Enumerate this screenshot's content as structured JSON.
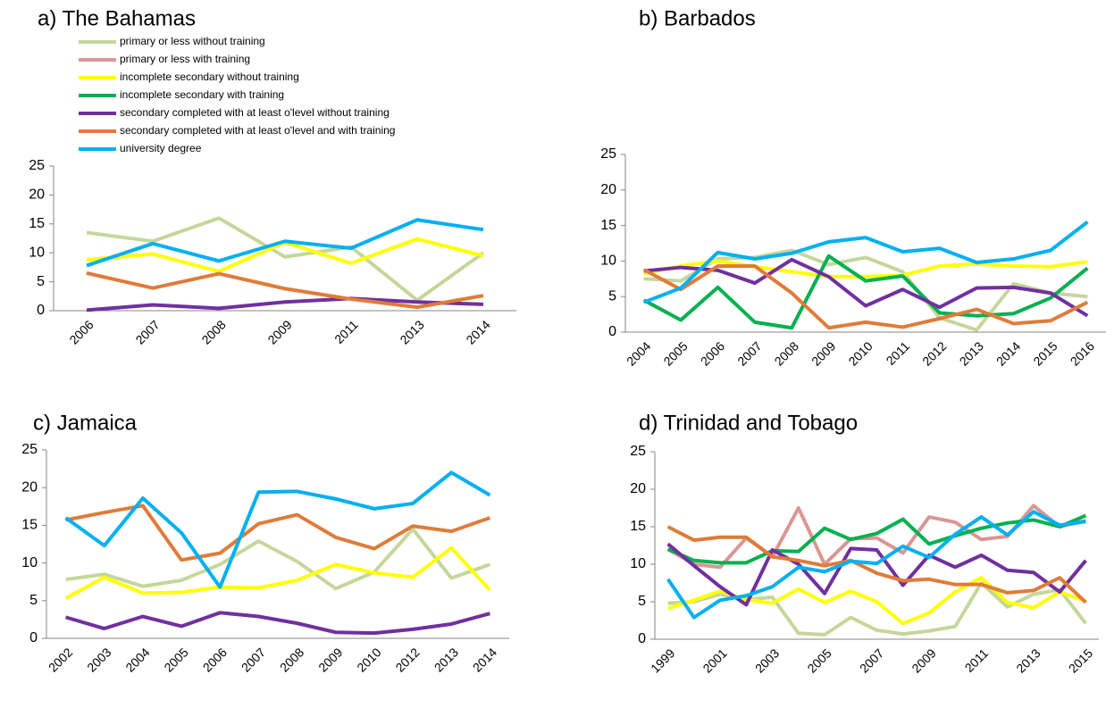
{
  "chart_data": [
    {
      "type": "line",
      "title": "a)  The Bahamas",
      "legend": true,
      "categories": [
        "2006",
        "2007",
        "2008",
        "2009",
        "2011",
        "2013",
        "2014"
      ],
      "ylim": [
        0,
        25
      ],
      "yticks": [
        0,
        5,
        10,
        15,
        20,
        25
      ],
      "series": [
        {
          "name": "primary or less without training",
          "color": "#c4d79b",
          "values": [
            13.5,
            12,
            16,
            9.3,
            11,
            1.8,
            10
          ]
        },
        {
          "name": "primary or less with training",
          "color": "#da9694",
          "values": [
            null,
            null,
            null,
            null,
            null,
            null,
            null
          ]
        },
        {
          "name": "incomplete secondary without training",
          "color": "#ffff00",
          "values": [
            8.8,
            9.8,
            6.8,
            11.8,
            8.2,
            12.4,
            9.5
          ]
        },
        {
          "name": "incomplete secondary with training",
          "color": "#00b050",
          "values": [
            null,
            null,
            null,
            null,
            null,
            null,
            null
          ]
        },
        {
          "name": "secondary completed with at least o'level without training",
          "color": "#7030a0",
          "values": [
            0.1,
            1,
            0.4,
            1.5,
            2.1,
            1.5,
            1.1
          ]
        },
        {
          "name": "secondary completed with at least o'level and with training",
          "color": "#e07b39",
          "values": [
            6.5,
            3.9,
            6.4,
            3.8,
            2,
            0.6,
            2.6
          ]
        },
        {
          "name": "university degree",
          "color": "#00b0f0",
          "values": [
            7.8,
            11.6,
            8.6,
            12,
            10.8,
            15.7,
            14
          ]
        }
      ]
    },
    {
      "type": "line",
      "title": "b)  Barbados",
      "legend": false,
      "categories": [
        "2004",
        "2005",
        "2006",
        "2007",
        "2008",
        "2009",
        "2010",
        "2011",
        "2012",
        "2013",
        "2014",
        "2015",
        "2016"
      ],
      "ylim": [
        0,
        25
      ],
      "yticks": [
        0,
        5,
        10,
        15,
        20,
        25
      ],
      "series": [
        {
          "color": "#c4d79b",
          "values": [
            7.5,
            7.2,
            10.3,
            10.5,
            11.5,
            9.5,
            10.5,
            8.5,
            2,
            0.3,
            6.8,
            5.5,
            5
          ]
        },
        {
          "color": "#ffff00",
          "values": [
            8.2,
            9.3,
            10,
            9.2,
            8.5,
            7.8,
            7.8,
            8,
            9.3,
            9.6,
            9.3,
            9.2,
            9.9
          ]
        },
        {
          "color": "#00b050",
          "values": [
            4.5,
            1.7,
            6.3,
            1.4,
            0.6,
            10.7,
            7.2,
            7.9,
            2.7,
            2.3,
            2.6,
            4.8,
            9
          ]
        },
        {
          "color": "#7030a0",
          "values": [
            8.6,
            9.1,
            8.7,
            6.9,
            10.2,
            7.8,
            3.7,
            6,
            3.5,
            6.2,
            6.3,
            5.5,
            2.3
          ]
        },
        {
          "color": "#e07b39",
          "values": [
            8.8,
            6,
            9.3,
            9.3,
            5.5,
            0.6,
            1.4,
            0.7,
            1.9,
            3.2,
            1.2,
            1.6,
            4.2
          ]
        },
        {
          "color": "#00b0f0",
          "values": [
            4.2,
            6.2,
            11.2,
            10.3,
            11.1,
            12.7,
            13.3,
            11.3,
            11.8,
            9.8,
            10.3,
            11.5,
            15.5
          ]
        }
      ]
    },
    {
      "type": "line",
      "title": "c)  Jamaica",
      "legend": false,
      "categories": [
        "2002",
        "2003",
        "2004",
        "2005",
        "2006",
        "2007",
        "2008",
        "2009",
        "2010",
        "2012",
        "2013",
        "2014"
      ],
      "ylim": [
        0,
        25
      ],
      "yticks": [
        0,
        5,
        10,
        15,
        20,
        25
      ],
      "series": [
        {
          "color": "#c4d79b",
          "values": [
            7.8,
            8.5,
            6.9,
            7.7,
            9.8,
            12.9,
            10.2,
            6.6,
            8.8,
            14.5,
            8,
            9.8
          ]
        },
        {
          "color": "#ffff00",
          "values": [
            5.3,
            8.1,
            6,
            6.1,
            6.8,
            6.7,
            7.7,
            9.8,
            8.7,
            8.1,
            12,
            6.4
          ]
        },
        {
          "color": "#7030a0",
          "values": [
            2.8,
            1.3,
            2.9,
            1.6,
            3.4,
            2.9,
            2,
            0.8,
            0.7,
            1.2,
            1.9,
            3.3
          ]
        },
        {
          "color": "#e07b39",
          "values": [
            15.7,
            16.7,
            17.6,
            10.4,
            11.3,
            15.2,
            16.4,
            13.4,
            11.9,
            14.9,
            14.2,
            16
          ]
        },
        {
          "color": "#00b0f0",
          "values": [
            16,
            12.3,
            18.6,
            14,
            6.8,
            19.4,
            19.5,
            18.5,
            17.2,
            17.9,
            22,
            19
          ]
        }
      ]
    },
    {
      "type": "line",
      "title": "d)  Trinidad and Tobago",
      "legend": false,
      "categories": [
        "1999",
        null,
        "2001",
        null,
        "2003",
        null,
        "2005",
        null,
        "2007",
        null,
        "2009",
        null,
        "2011",
        null,
        "2013",
        null,
        "2015"
      ],
      "ylim": [
        0,
        25
      ],
      "yticks": [
        0,
        5,
        10,
        15,
        20,
        25
      ],
      "series": [
        {
          "color": "#c4d79b",
          "values": [
            4.8,
            5,
            6,
            5.3,
            5.6,
            0.8,
            0.6,
            2.9,
            1.2,
            0.7,
            1.1,
            1.7,
            7.5,
            4.3,
            6,
            6.6,
            2.1
          ]
        },
        {
          "color": "#da9694",
          "values": [
            12,
            10,
            9.6,
            13.5,
            11,
            17.5,
            10,
            13.4,
            13.5,
            11.5,
            16.3,
            15.6,
            13.3,
            13.7,
            17.8,
            15,
            15.8
          ]
        },
        {
          "color": "#ffff00",
          "values": [
            4.1,
            5.2,
            6.4,
            5.3,
            4.8,
            6.7,
            4.9,
            6.4,
            5,
            2.1,
            3.5,
            6.3,
            8.2,
            4.9,
            4.2,
            6.3,
            5.1
          ]
        },
        {
          "color": "#00b050",
          "values": [
            12,
            10.5,
            10.2,
            10.2,
            11.8,
            11.7,
            14.8,
            13.3,
            14.1,
            16,
            12.7,
            13.8,
            14.8,
            15.5,
            15.9,
            15,
            16.5
          ]
        },
        {
          "color": "#7030a0",
          "values": [
            12.7,
            9.8,
            7,
            4.6,
            11.9,
            10,
            6.1,
            12.1,
            11.9,
            7.2,
            11.2,
            9.6,
            11.2,
            9.2,
            8.9,
            6.3,
            10.5
          ]
        },
        {
          "color": "#e07b39",
          "values": [
            15,
            13.2,
            13.6,
            13.6,
            11,
            10.5,
            9.8,
            10.5,
            8.8,
            7.8,
            8,
            7.3,
            7.3,
            6.2,
            6.5,
            8.2,
            4.9
          ]
        },
        {
          "color": "#00b0f0",
          "values": [
            8,
            2.9,
            5.2,
            5.8,
            7,
            9.6,
            9,
            10.4,
            10.1,
            12.4,
            10.9,
            14,
            16.3,
            13.9,
            17,
            15.2,
            15.7
          ]
        }
      ]
    }
  ]
}
